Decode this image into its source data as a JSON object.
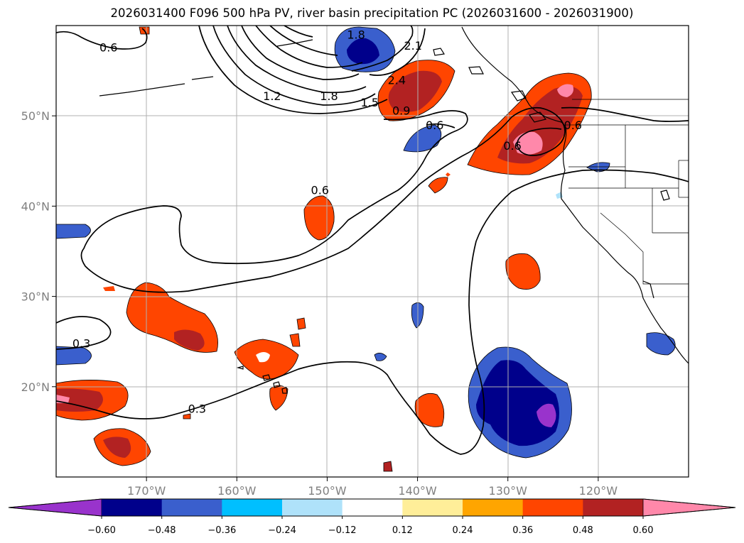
{
  "title": "2026031400 F096 500 hPa PV, river basin precipitation PC (2026031600 - 2026031900)",
  "map": {
    "projection": "PlateCarree",
    "lon_range": [
      -180,
      -110
    ],
    "lat_range": [
      10,
      60
    ],
    "lon_ticks": [
      {
        "lon": -170,
        "label": "170°W"
      },
      {
        "lon": -160,
        "label": "160°W"
      },
      {
        "lon": -150,
        "label": "150°W"
      },
      {
        "lon": -140,
        "label": "140°W"
      },
      {
        "lon": -130,
        "label": "130°W"
      },
      {
        "lon": -120,
        "label": "120°W"
      }
    ],
    "lat_ticks": [
      {
        "lat": 50,
        "label": "50°N"
      },
      {
        "lat": 40,
        "label": "40°N"
      },
      {
        "lat": 30,
        "label": "30°N"
      },
      {
        "lat": 20,
        "label": "20°N"
      }
    ],
    "grid": true
  },
  "pv_contour_labels": [
    {
      "text": "1.8",
      "lon": -146.8,
      "lat": 59.0
    },
    {
      "text": "2.1",
      "lon": -140.5,
      "lat": 57.8
    },
    {
      "text": "2.4",
      "lon": -142.3,
      "lat": 54.0
    },
    {
      "text": "1.2",
      "lon": -156.1,
      "lat": 52.2
    },
    {
      "text": "1.8",
      "lon": -149.8,
      "lat": 52.2
    },
    {
      "text": "1.5",
      "lon": -145.3,
      "lat": 51.5
    },
    {
      "text": "0.9",
      "lon": -141.8,
      "lat": 50.6
    },
    {
      "text": "0.6",
      "lon": -138.1,
      "lat": 49.0
    },
    {
      "text": "0.6",
      "lon": -174.2,
      "lat": 57.6
    },
    {
      "text": "0.6",
      "lon": -122.8,
      "lat": 49.0
    },
    {
      "text": "0.6",
      "lon": -129.5,
      "lat": 46.7
    },
    {
      "text": "0.6",
      "lon": -150.8,
      "lat": 41.8
    },
    {
      "text": "0.3",
      "lon": -177.2,
      "lat": 24.8
    },
    {
      "text": "0.3",
      "lon": -164.4,
      "lat": 17.6
    }
  ],
  "colorbar": {
    "levels": [
      -0.72,
      -0.6,
      -0.48,
      -0.36,
      -0.24,
      -0.12,
      0.12,
      0.24,
      0.36,
      0.48,
      0.6,
      0.72
    ],
    "colors": [
      "#9933cc",
      "#00008b",
      "#3a5fcd",
      "#00bfff",
      "#afe2fa",
      "#ffffff",
      "#ffee99",
      "#ffa500",
      "#ff4500",
      "#b22222",
      "#ff88aa"
    ],
    "extend_colors": {
      "min": "#9933cc",
      "max": "#ff88aa"
    },
    "tick_labels": [
      "−0.60",
      "−0.48",
      "−0.36",
      "−0.24",
      "−0.12",
      "0.12",
      "0.24",
      "0.36",
      "0.48",
      "0.60"
    ]
  }
}
